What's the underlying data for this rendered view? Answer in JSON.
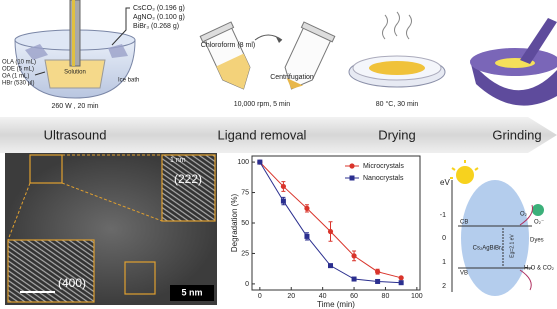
{
  "schematic": {
    "reagents_right": [
      "CsCO₃ (0.196 g)",
      "AgNO₃ (0.100 g)",
      "BiBr₃ (0.268 g)"
    ],
    "reagents_left": [
      "OLA (10 mL)",
      "ODE (5 mL)",
      "OA (1 mL)",
      "HBr (530 µl)"
    ],
    "solution": "Solution",
    "ice_bath": "Ice bath",
    "ultrasound_condition": "260 W , 20 min",
    "chloroform": "Chloroform (8 ml)",
    "centrifugation": "Centrifugation",
    "centrifuge_condition": "10,000 rpm, 5 min",
    "drying_condition": "80 °C, 30 min"
  },
  "steps": [
    "Ultrasound",
    "Ligand removal",
    "Drying",
    "Grinding"
  ],
  "micrograph": {
    "plane_top": "(222)",
    "plane_bottom": "(400)",
    "scale_inset": "1 nm",
    "scale_main": "5 nm"
  },
  "chart_data": {
    "type": "line",
    "x_label": "Time (min)",
    "y_label": "Degradation (%)",
    "x": [
      0,
      15,
      30,
      45,
      60,
      75,
      90
    ],
    "series": [
      {
        "name": "Microcrystals",
        "color": "#d9342b",
        "marker": "circle",
        "values": [
          100,
          80,
          62,
          43,
          23,
          10,
          5
        ],
        "errors": [
          null,
          4,
          3,
          8,
          4,
          2,
          null
        ]
      },
      {
        "name": "Nanocrystals",
        "color": "#2b2f8f",
        "marker": "square",
        "values": [
          100,
          68,
          39,
          15,
          4,
          2,
          1
        ],
        "errors": [
          null,
          3,
          3,
          null,
          null,
          null,
          null
        ]
      }
    ],
    "xlim": [
      -5,
      102
    ],
    "ylim": [
      -5,
      105
    ],
    "xticks": [
      0,
      20,
      40,
      60,
      80,
      100
    ],
    "yticks": [
      0,
      25,
      50,
      75,
      100
    ],
    "legend": "upper right"
  },
  "energy_diagram": {
    "unit": "eV",
    "levels": [
      "-1",
      "0",
      "1",
      "2"
    ],
    "cb": "CB",
    "vb": "VB",
    "material": "Cs₂AgBiBr₆",
    "gap": "Eg=2.1 eV",
    "oxygen": "O₂",
    "superoxide": "O₂⁻",
    "dyes": "Dyes",
    "products": "H₂O & CO₂"
  }
}
